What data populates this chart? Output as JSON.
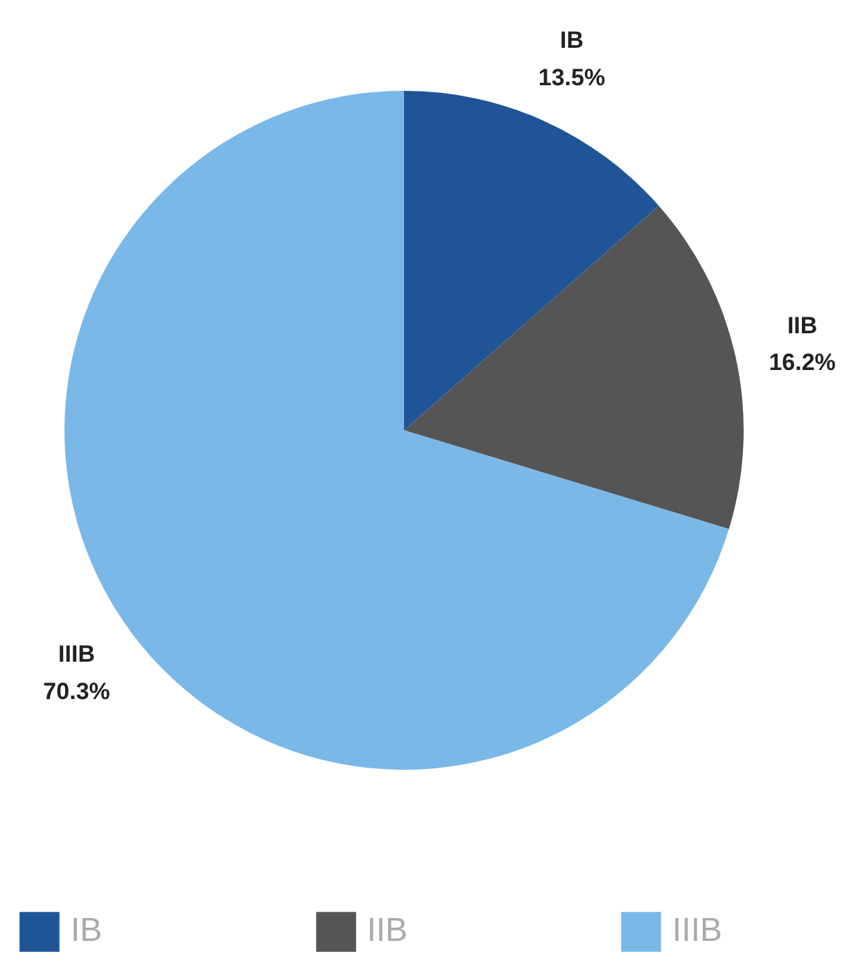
{
  "chart_data": {
    "type": "pie",
    "categories": [
      "IB",
      "IIB",
      "IIIB"
    ],
    "values": [
      13.5,
      16.2,
      70.3
    ],
    "colors": [
      "#1f5597",
      "#555555",
      "#7ab8e8"
    ],
    "value_labels": [
      "13.5%",
      "16.2%",
      "70.3%"
    ],
    "legend": "bottom"
  }
}
